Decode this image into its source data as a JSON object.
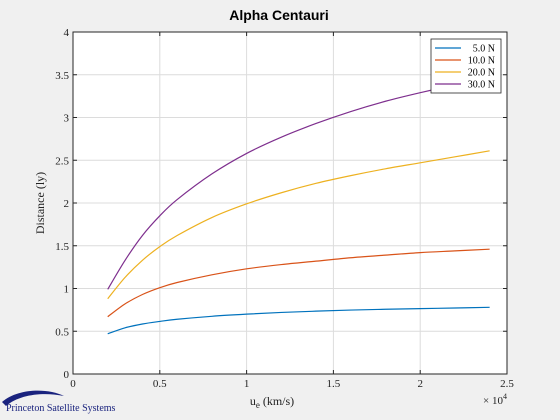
{
  "chart_data": {
    "type": "line",
    "title": "Alpha Centauri",
    "xlabel_main": "u",
    "xlabel_sub": "e",
    "xlabel_rest": " (km/s)",
    "ylabel": "Distance (ly)",
    "x_exponent_base": "× 10",
    "x_exponent_power": "4",
    "xlim": [
      0,
      25000
    ],
    "ylim": [
      0,
      4
    ],
    "xticks": [
      0,
      5000,
      10000,
      15000,
      20000,
      25000
    ],
    "xtick_labels": [
      "0",
      "0.5",
      "1",
      "1.5",
      "2",
      "2.5"
    ],
    "yticks": [
      0,
      0.5,
      1,
      1.5,
      2,
      2.5,
      3,
      3.5,
      4
    ],
    "ytick_labels": [
      "0",
      "0.5",
      "1",
      "1.5",
      "2",
      "2.5",
      "3",
      "3.5",
      "4"
    ],
    "grid": true,
    "legend_position": "top-right",
    "x": [
      2000,
      3000,
      4000,
      5000,
      6000,
      8000,
      10000,
      12000,
      14000,
      16000,
      18000,
      20000,
      22000,
      24000
    ],
    "series": [
      {
        "name": "5.0 N",
        "color": "#0072bd",
        "values": [
          0.47,
          0.54,
          0.585,
          0.615,
          0.64,
          0.675,
          0.7,
          0.72,
          0.735,
          0.748,
          0.757,
          0.765,
          0.772,
          0.78
        ]
      },
      {
        "name": "10.0 N",
        "color": "#d95319",
        "values": [
          0.67,
          0.82,
          0.93,
          1.01,
          1.07,
          1.16,
          1.23,
          1.28,
          1.32,
          1.36,
          1.39,
          1.42,
          1.44,
          1.46
        ]
      },
      {
        "name": "20.0 N",
        "color": "#edb120",
        "values": [
          0.88,
          1.13,
          1.33,
          1.49,
          1.62,
          1.83,
          1.99,
          2.12,
          2.23,
          2.32,
          2.4,
          2.47,
          2.54,
          2.61
        ]
      },
      {
        "name": "30.0 N",
        "color": "#7e2f8e",
        "values": [
          0.99,
          1.33,
          1.62,
          1.85,
          2.04,
          2.34,
          2.58,
          2.77,
          2.93,
          3.07,
          3.19,
          3.29,
          3.38,
          3.46
        ]
      }
    ]
  },
  "logo": {
    "text": "Princeton Satellite Systems"
  }
}
